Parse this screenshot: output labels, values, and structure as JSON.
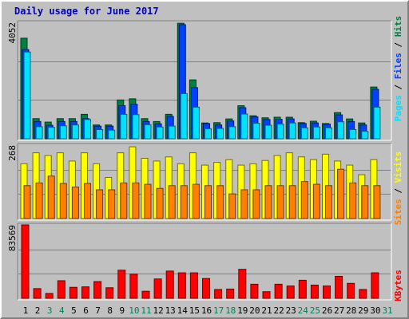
{
  "title": "Daily usage for June 2017",
  "colors": {
    "frame": "#c0c0c0",
    "panel_bg": "#c0c0c0",
    "hits": "#008040",
    "files": "#0040ff",
    "pages": "#00e0ff",
    "visits": "#ffff00",
    "sites": "#ff8000",
    "kbytes": "#ff0000",
    "title": "#0000c0",
    "weekend_label": "#00805c"
  },
  "chart_data": [
    {
      "type": "bar",
      "name_label": "hits-files-pages",
      "max_label": "4052",
      "ylim": [
        0,
        4052
      ],
      "legend": {
        "pages": "Pages",
        "sep1": " / ",
        "files": "Files",
        "sep2": " / ",
        "hits": "Hits"
      },
      "categories": [
        "1",
        "2",
        "3",
        "4",
        "5",
        "6",
        "7",
        "8",
        "9",
        "10",
        "11",
        "12",
        "13",
        "14",
        "15",
        "16",
        "17",
        "18",
        "19",
        "20",
        "21",
        "22",
        "23",
        "24",
        "25",
        "26",
        "27",
        "28",
        "29",
        "30",
        "31"
      ],
      "series": [
        {
          "name": "Hits",
          "values": [
            3500,
            700,
            580,
            700,
            700,
            850,
            480,
            480,
            1350,
            1390,
            700,
            600,
            850,
            4020,
            2050,
            550,
            560,
            690,
            1150,
            800,
            730,
            750,
            750,
            560,
            610,
            530,
            910,
            690,
            550,
            1800,
            0
          ]
        },
        {
          "name": "Files",
          "values": [
            3100,
            600,
            470,
            600,
            600,
            700,
            440,
            440,
            1150,
            1200,
            600,
            520,
            780,
            3970,
            1780,
            530,
            480,
            620,
            1080,
            760,
            670,
            680,
            690,
            530,
            550,
            510,
            830,
            600,
            480,
            1720,
            0
          ]
        },
        {
          "name": "Pages",
          "values": [
            3020,
            420,
            400,
            450,
            480,
            670,
            320,
            300,
            850,
            840,
            490,
            410,
            440,
            1570,
            1100,
            350,
            360,
            420,
            860,
            540,
            470,
            510,
            550,
            380,
            410,
            380,
            590,
            320,
            260,
            1100,
            0
          ]
        }
      ]
    },
    {
      "type": "bar",
      "name_label": "visits-sites",
      "max_label": "268",
      "ylim": [
        0,
        268
      ],
      "legend": {
        "sites": "Sites",
        "sep1": " / ",
        "visits": "Visits"
      },
      "categories": [
        "1",
        "2",
        "3",
        "4",
        "5",
        "6",
        "7",
        "8",
        "9",
        "10",
        "11",
        "12",
        "13",
        "14",
        "15",
        "16",
        "17",
        "18",
        "19",
        "20",
        "21",
        "22",
        "23",
        "24",
        "25",
        "26",
        "27",
        "28",
        "29",
        "30",
        "31"
      ],
      "series": [
        {
          "name": "Visits",
          "values": [
            200,
            240,
            230,
            240,
            210,
            240,
            200,
            150,
            240,
            262,
            220,
            210,
            225,
            200,
            240,
            195,
            205,
            215,
            195,
            200,
            212,
            230,
            240,
            225,
            215,
            235,
            210,
            195,
            160,
            215,
            0
          ]
        },
        {
          "name": "Sites",
          "values": [
            120,
            130,
            155,
            128,
            115,
            128,
            105,
            105,
            130,
            130,
            125,
            110,
            120,
            120,
            125,
            120,
            120,
            90,
            105,
            105,
            120,
            120,
            120,
            135,
            125,
            120,
            180,
            130,
            120,
            120,
            0
          ]
        }
      ]
    },
    {
      "type": "bar",
      "name_label": "kbytes",
      "max_label": "83569",
      "ylim": [
        0,
        83569
      ],
      "legend": {
        "kbytes": "KBytes"
      },
      "categories": [
        "1",
        "2",
        "3",
        "4",
        "5",
        "6",
        "7",
        "8",
        "9",
        "10",
        "11",
        "12",
        "13",
        "14",
        "15",
        "16",
        "17",
        "18",
        "19",
        "20",
        "21",
        "22",
        "23",
        "24",
        "25",
        "26",
        "27",
        "28",
        "29",
        "30",
        "31"
      ],
      "series": [
        {
          "name": "KBytes",
          "values": [
            83569,
            11000,
            5500,
            20000,
            12500,
            13000,
            19000,
            12000,
            32000,
            27500,
            8000,
            22000,
            31000,
            29000,
            29000,
            22500,
            10000,
            10500,
            33000,
            16000,
            7500,
            16000,
            14000,
            20500,
            15000,
            14000,
            25000,
            17000,
            10000,
            29000,
            0
          ]
        }
      ]
    }
  ],
  "day_labels": [
    {
      "text": "1",
      "weekend": false
    },
    {
      "text": "2",
      "weekend": false
    },
    {
      "text": "3",
      "weekend": true
    },
    {
      "text": "4",
      "weekend": true
    },
    {
      "text": "5",
      "weekend": false
    },
    {
      "text": "6",
      "weekend": false
    },
    {
      "text": "7",
      "weekend": false
    },
    {
      "text": "8",
      "weekend": false
    },
    {
      "text": "9",
      "weekend": false
    },
    {
      "text": "10",
      "weekend": true
    },
    {
      "text": "11",
      "weekend": true
    },
    {
      "text": "12",
      "weekend": false
    },
    {
      "text": "13",
      "weekend": false
    },
    {
      "text": "14",
      "weekend": false
    },
    {
      "text": "15",
      "weekend": false
    },
    {
      "text": "16",
      "weekend": false
    },
    {
      "text": "17",
      "weekend": true
    },
    {
      "text": "18",
      "weekend": true
    },
    {
      "text": "19",
      "weekend": false
    },
    {
      "text": "20",
      "weekend": false
    },
    {
      "text": "21",
      "weekend": false
    },
    {
      "text": "22",
      "weekend": false
    },
    {
      "text": "23",
      "weekend": false
    },
    {
      "text": "24",
      "weekend": true
    },
    {
      "text": "25",
      "weekend": true
    },
    {
      "text": "26",
      "weekend": false
    },
    {
      "text": "27",
      "weekend": false
    },
    {
      "text": "28",
      "weekend": false
    },
    {
      "text": "29",
      "weekend": false
    },
    {
      "text": "30",
      "weekend": false
    },
    {
      "text": "31",
      "weekend": true
    }
  ]
}
